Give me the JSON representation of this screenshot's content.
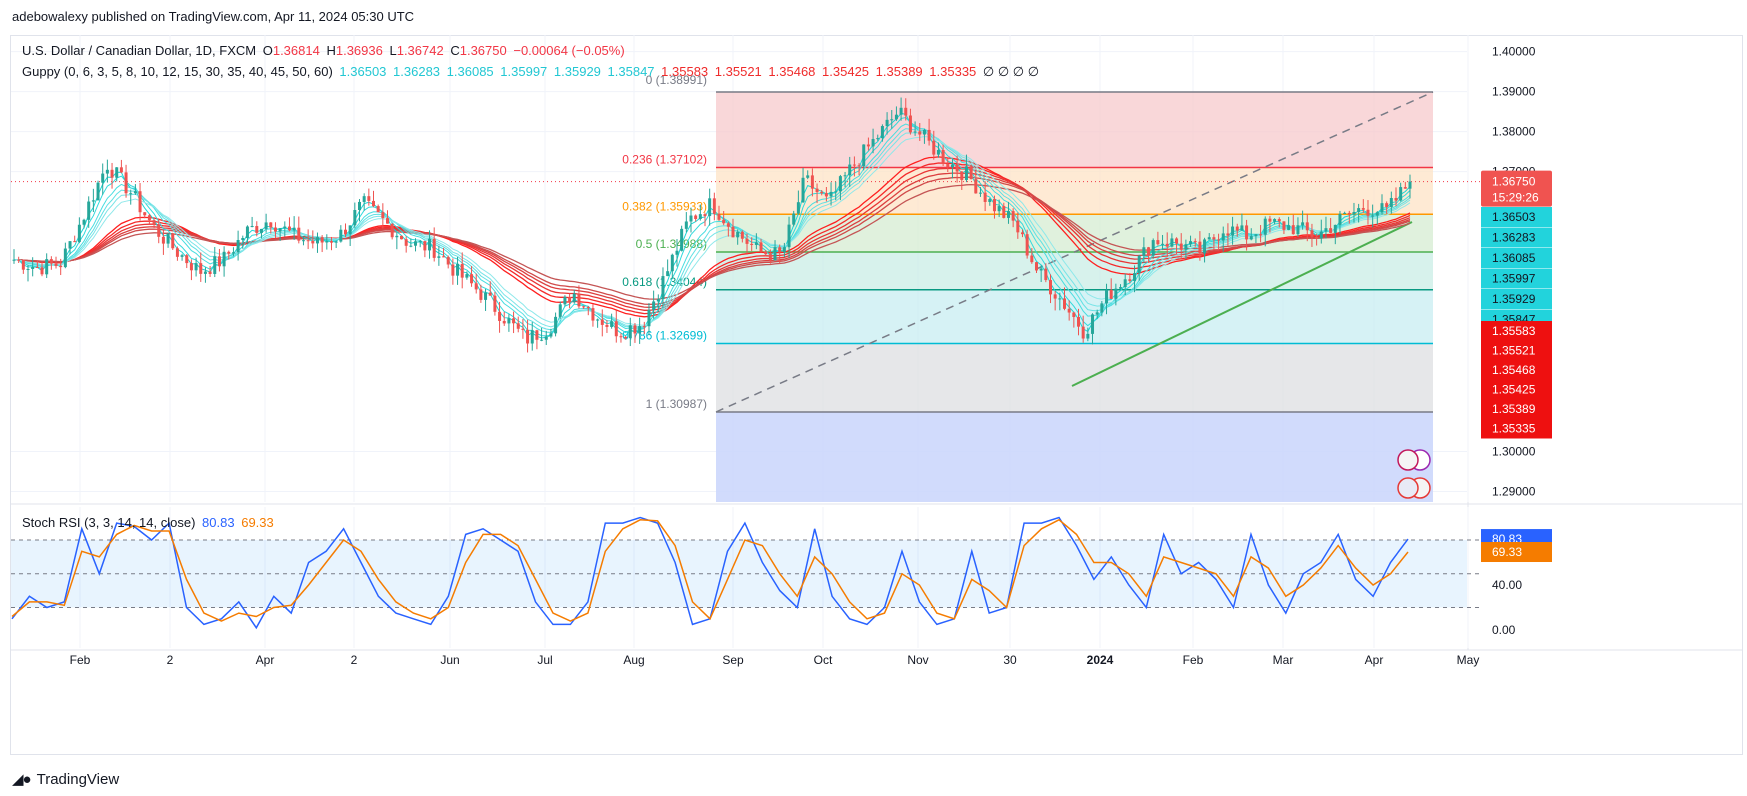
{
  "header": {
    "publisher": "adebowalexy published on TradingView.com, Apr 11, 2024 05:30 UTC"
  },
  "legend": {
    "symbol": "U.S. Dollar / Canadian Dollar, 1D, FXCM",
    "o_label": "O",
    "o": "1.36814",
    "h_label": "H",
    "h": "1.36936",
    "l_label": "L",
    "l": "1.36742",
    "c_label": "C",
    "c": "1.36750",
    "change": "−0.00064 (−0.05%)",
    "guppy_label": "Guppy (0, 6, 3, 5, 8, 10, 12, 15, 30, 35, 40, 45, 50, 60)",
    "guppy_fast": [
      "1.36503",
      "1.36283",
      "1.36085",
      "1.35997",
      "1.35929",
      "1.35847"
    ],
    "guppy_slow": [
      "1.35583",
      "1.35521",
      "1.35468",
      "1.35425",
      "1.35389",
      "1.35335"
    ],
    "guppy_zeros": "∅  ∅  ∅  ∅",
    "stoch_label": "Stoch RSI (3, 3, 14, 14, close)",
    "stoch_k": "80.83",
    "stoch_d": "69.33"
  },
  "price_axis": {
    "ticks": [
      "1.40000",
      "1.39000",
      "1.38000",
      "1.37000",
      "1.30000",
      "1.29000"
    ],
    "last_price": "1.36750",
    "countdown": "15:29:26",
    "fast_tags": [
      "1.36503",
      "1.36283",
      "1.36085",
      "1.35997",
      "1.35929",
      "1.35847"
    ],
    "slow_tags": [
      "1.35583",
      "1.35521",
      "1.35468",
      "1.35425",
      "1.35389",
      "1.35335"
    ]
  },
  "rsi_axis": {
    "ticks": [
      "40.00",
      "0.00"
    ],
    "k_tag": "80.83",
    "d_tag": "69.33"
  },
  "time_axis": {
    "labels": [
      "Feb",
      "2",
      "Apr",
      "2",
      "Jun",
      "Jul",
      "Aug",
      "Sep",
      "Oct",
      "Nov",
      "30",
      "2024",
      "Feb",
      "Mar",
      "Apr",
      "May"
    ]
  },
  "fib_levels": [
    {
      "label": "0 (1.38991)",
      "price": 1.38991,
      "line": "#787b86",
      "text": "#787b86"
    },
    {
      "label": "0.236 (1.37102)",
      "price": 1.37102,
      "line": "#f23645",
      "text": "#f23645"
    },
    {
      "label": "0.382 (1.35933)",
      "price": 1.35933,
      "line": "#ff9800",
      "text": "#ff9800"
    },
    {
      "label": "0.5 (1.34988)",
      "price": 1.34988,
      "line": "#4caf50",
      "text": "#4caf50"
    },
    {
      "label": "0.618 (1.34044)",
      "price": 1.34044,
      "line": "#089981",
      "text": "#089981"
    },
    {
      "label": "0.786 (1.32699)",
      "price": 1.32699,
      "line": "#00bcd4",
      "text": "#00bcd4"
    },
    {
      "label": "1 (1.30987)",
      "price": 1.30987,
      "line": "#787b86",
      "text": "#787b86"
    }
  ],
  "fib_zone_colors": [
    "#f7c9cc",
    "#fde3c6",
    "#d6ecd2",
    "#c9eee6",
    "#c8eef2",
    "#dedfe1",
    "#c9d5fb"
  ],
  "colors": {
    "up": "#26a69a",
    "down": "#ef5350",
    "fast_ema": "#26d0d8",
    "slow_ema": "#e41e1e",
    "stoch_k": "#2962ff",
    "stoch_d": "#f57c00",
    "trendline": "#4caf50",
    "last_price_tag": "#f05350"
  },
  "chart_data": [
    {
      "type": "candlestick",
      "title": "U.S. Dollar / Canadian Dollar, 1D, FXCM",
      "ylim": [
        1.2875,
        1.4045
      ],
      "ohlc_last": {
        "open": 1.36814,
        "high": 1.36936,
        "low": 1.36742,
        "close": 1.3675
      },
      "x": [
        "Feb",
        "2",
        "Apr",
        "2",
        "Jun",
        "Jul",
        "Aug",
        "Sep",
        "Oct",
        "Nov",
        "30",
        "2024",
        "Feb",
        "Mar",
        "Apr",
        "May"
      ],
      "price_path": [
        1.348,
        1.346,
        1.347,
        1.359,
        1.372,
        1.365,
        1.356,
        1.35,
        1.345,
        1.348,
        1.355,
        1.358,
        1.354,
        1.352,
        1.354,
        1.362,
        1.357,
        1.352,
        1.351,
        1.345,
        1.34,
        1.334,
        1.328,
        1.331,
        1.34,
        1.334,
        1.33,
        1.332,
        1.344,
        1.358,
        1.362,
        1.355,
        1.35,
        1.349,
        1.368,
        1.362,
        1.371,
        1.378,
        1.385,
        1.379,
        1.373,
        1.369,
        1.362,
        1.357,
        1.345,
        1.338,
        1.33,
        1.339,
        1.345,
        1.353,
        1.352,
        1.35,
        1.356,
        1.354,
        1.357,
        1.356,
        1.354,
        1.358,
        1.361,
        1.36,
        1.3675
      ],
      "guppy_fast_last": [
        1.36503,
        1.36283,
        1.36085,
        1.35997,
        1.35929,
        1.35847
      ],
      "guppy_slow_last": [
        1.35583,
        1.35521,
        1.35468,
        1.35425,
        1.35389,
        1.35335
      ],
      "fibonacci": {
        "0": 1.38991,
        "0.236": 1.37102,
        "0.382": 1.35933,
        "0.5": 1.34988,
        "0.618": 1.34044,
        "0.786": 1.32699,
        "1": 1.30987
      }
    },
    {
      "type": "line",
      "title": "Stoch RSI (3, 3, 14, 14, close)",
      "ylim": [
        0,
        100
      ],
      "bands": [
        20,
        50,
        80
      ],
      "series": [
        {
          "name": "K",
          "last": 80.83,
          "values": [
            10,
            30,
            20,
            25,
            90,
            50,
            95,
            92,
            80,
            95,
            20,
            5,
            10,
            25,
            2,
            30,
            15,
            60,
            70,
            90,
            60,
            30,
            15,
            10,
            5,
            30,
            85,
            90,
            80,
            70,
            25,
            5,
            5,
            25,
            95,
            95,
            100,
            95,
            60,
            5,
            10,
            70,
            95,
            60,
            35,
            20,
            90,
            30,
            10,
            5,
            20,
            70,
            25,
            5,
            10,
            70,
            15,
            20,
            95,
            95,
            100,
            75,
            45,
            65,
            40,
            20,
            85,
            50,
            60,
            45,
            20,
            85,
            40,
            15,
            50,
            60,
            85,
            45,
            30,
            60,
            80.83
          ]
        },
        {
          "name": "D",
          "last": 69.33,
          "values": [
            12,
            25,
            25,
            22,
            70,
            65,
            85,
            93,
            88,
            88,
            45,
            15,
            8,
            15,
            12,
            20,
            22,
            40,
            60,
            80,
            70,
            45,
            25,
            15,
            10,
            20,
            60,
            85,
            85,
            75,
            45,
            15,
            8,
            15,
            70,
            90,
            98,
            97,
            75,
            25,
            10,
            45,
            80,
            75,
            50,
            30,
            65,
            50,
            25,
            10,
            15,
            50,
            40,
            15,
            10,
            45,
            35,
            20,
            75,
            90,
            98,
            85,
            60,
            60,
            50,
            30,
            65,
            60,
            55,
            50,
            30,
            65,
            55,
            30,
            40,
            55,
            75,
            55,
            40,
            50,
            69.33
          ]
        }
      ]
    }
  ]
}
